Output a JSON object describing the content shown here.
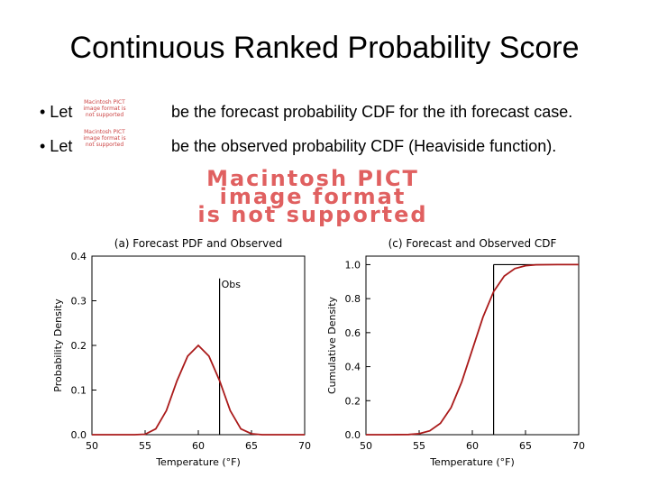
{
  "slide": {
    "title": "Continuous Ranked Probability Score",
    "bullet1": {
      "lead": "• Let",
      "placeholder": "Macintosh PICT image format is not supported",
      "text": "be the forecast probability CDF for the ith forecast case."
    },
    "bullet2": {
      "lead": "• Let",
      "placeholder": "Macintosh PICT image format is not supported",
      "text": "be the observed probability CDF (Heaviside function)."
    },
    "big_placeholder": [
      "Macintosh PICT",
      "image format",
      "is not supported"
    ]
  },
  "chart_data": [
    {
      "type": "line",
      "title": "(a) Forecast PDF and Observed",
      "xlabel": "Temperature (°F)",
      "ylabel": "Probability Density",
      "xlim": [
        50,
        70
      ],
      "ylim": [
        0,
        0.4
      ],
      "xticks": [
        "50",
        "55",
        "60",
        "65",
        "70"
      ],
      "yticks": [
        "0.0",
        "0.1",
        "0.2",
        "0.3",
        "0.4"
      ],
      "series": [
        {
          "color": "#aa1a1a",
          "x": [
            50,
            52,
            54,
            55,
            56,
            57,
            58,
            59,
            60,
            61,
            62,
            63,
            64,
            65,
            66,
            68,
            70
          ],
          "y": [
            0.0,
            0.0,
            0.0,
            0.001,
            0.013,
            0.054,
            0.121,
            0.176,
            0.2,
            0.176,
            0.121,
            0.054,
            0.013,
            0.002,
            0.0,
            0.0,
            0.0
          ]
        }
      ],
      "observation": {
        "x": 62,
        "y": 0.35,
        "label": "Obs"
      }
    },
    {
      "type": "line",
      "title": "(c) Forecast and Observed CDF",
      "xlabel": "Temperature (°F)",
      "ylabel": "Cumulative Density",
      "xlim": [
        50,
        70
      ],
      "ylim": [
        0,
        1.05
      ],
      "xticks": [
        "50",
        "55",
        "60",
        "65",
        "70"
      ],
      "yticks": [
        "0.0",
        "0.2",
        "0.4",
        "0.6",
        "0.8",
        "1.0"
      ],
      "series": [
        {
          "color": "#aa1a1a",
          "x": [
            50,
            52,
            54,
            55,
            56,
            57,
            58,
            59,
            60,
            61,
            62,
            63,
            64,
            65,
            66,
            68,
            70
          ],
          "y": [
            0.0,
            0.0,
            0.001,
            0.006,
            0.023,
            0.067,
            0.159,
            0.309,
            0.5,
            0.691,
            0.841,
            0.933,
            0.977,
            0.994,
            0.999,
            1.0,
            1.0
          ]
        }
      ],
      "observation": {
        "x": 62,
        "y": 1.0
      }
    }
  ]
}
